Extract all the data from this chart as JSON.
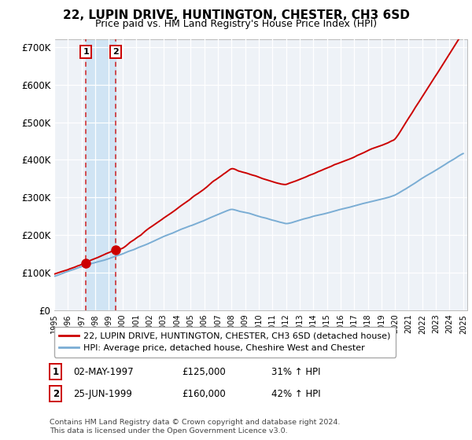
{
  "title": "22, LUPIN DRIVE, HUNTINGTON, CHESTER, CH3 6SD",
  "subtitle": "Price paid vs. HM Land Registry's House Price Index (HPI)",
  "legend_label_red": "22, LUPIN DRIVE, HUNTINGTON, CHESTER, CH3 6SD (detached house)",
  "legend_label_blue": "HPI: Average price, detached house, Cheshire West and Chester",
  "footer": "Contains HM Land Registry data © Crown copyright and database right 2024.\nThis data is licensed under the Open Government Licence v3.0.",
  "sale1_date": "02-MAY-1997",
  "sale1_price": 125000,
  "sale1_label": "1",
  "sale1_pct": "31% ↑ HPI",
  "sale1_x": 1997.33,
  "sale2_date": "25-JUN-1999",
  "sale2_price": 160000,
  "sale2_label": "2",
  "sale2_pct": "42% ↑ HPI",
  "sale2_x": 1999.5,
  "ylim": [
    0,
    720000
  ],
  "yticks": [
    0,
    100000,
    200000,
    300000,
    400000,
    500000,
    600000,
    700000
  ],
  "ytick_labels": [
    "£0",
    "£100K",
    "£200K",
    "£300K",
    "£400K",
    "£500K",
    "£600K",
    "£700K"
  ],
  "red_color": "#cc0000",
  "blue_color": "#7aadd4",
  "background_color": "#ffffff",
  "plot_bg_color": "#eef2f7",
  "grid_color": "#ffffff",
  "span_color": "#d0e4f4",
  "xmin": 1995.0,
  "xmax": 2025.3
}
